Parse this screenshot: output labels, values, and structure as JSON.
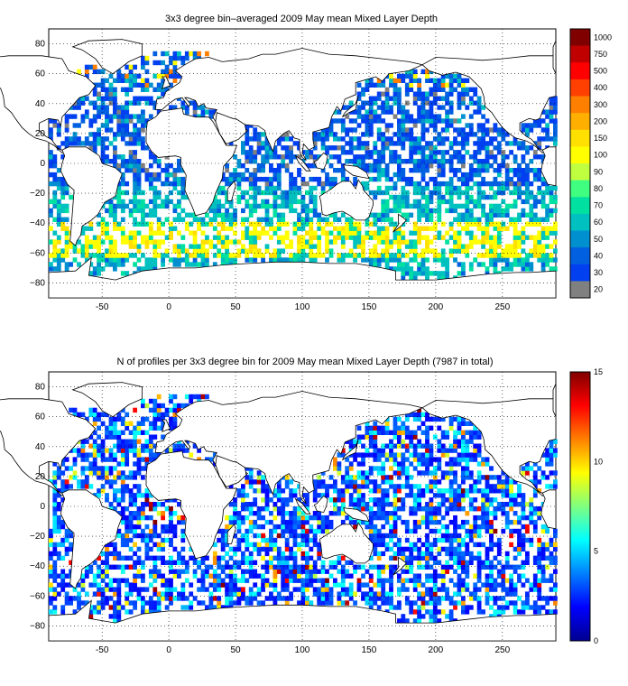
{
  "maps": [
    {
      "title": "3x3 degree bin–averaged 2009 May mean Mixed Layer Depth",
      "xticks": [
        "-50",
        "0",
        "50",
        "100",
        "150",
        "200",
        "250"
      ],
      "yticks": [
        "80",
        "60",
        "40",
        "20",
        "0",
        "−20",
        "−40",
        "−60",
        "−80"
      ],
      "colorbar": {
        "type": "discrete",
        "labels": [
          "1000",
          "750",
          "500",
          "400",
          "300",
          "200",
          "150",
          "100",
          "90",
          "80",
          "70",
          "60",
          "50",
          "40",
          "30",
          "20"
        ],
        "colors": [
          "#800000",
          "#C00000",
          "#FF0000",
          "#FF4000",
          "#FF7F00",
          "#FFAF00",
          "#FFE000",
          "#FFFF00",
          "#C0FF40",
          "#40FF80",
          "#00E0A0",
          "#00C0C0",
          "#0090D0",
          "#0060E0",
          "#0040F0",
          "#808080"
        ]
      }
    },
    {
      "title": "N of profiles per 3x3 degree bin for 2009 May mean Mixed Layer Depth  (7987 in total)",
      "xticks": [
        "-50",
        "0",
        "50",
        "100",
        "150",
        "200",
        "250"
      ],
      "yticks": [
        "80",
        "60",
        "40",
        "20",
        "0",
        "−20",
        "−40",
        "−60",
        "−80"
      ],
      "colorbar": {
        "type": "continuous",
        "labels": [
          "15",
          "10",
          "5",
          "0"
        ],
        "range": [
          0,
          15
        ]
      }
    }
  ]
}
